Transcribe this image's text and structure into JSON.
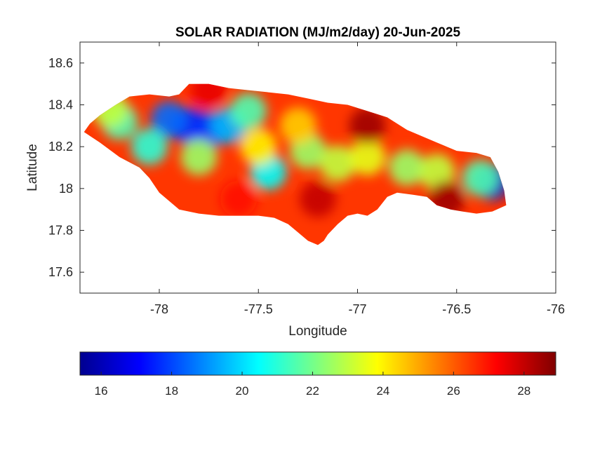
{
  "figure": {
    "title": "SOLAR RADIATION (MJ/m2/day) 20-Jun-2025",
    "xlabel": "Longitude",
    "ylabel": "Latitude"
  },
  "axes": {
    "xlim": [
      -78.4,
      -76
    ],
    "ylim": [
      17.5,
      18.7
    ],
    "xticks": [
      -78,
      -77.5,
      -77,
      -76.5,
      -76
    ],
    "xtick_labels": [
      "-78",
      "-77.5",
      "-77",
      "-76.5",
      "-76"
    ],
    "yticks": [
      17.6,
      17.8,
      18,
      18.2,
      18.4,
      18.6
    ],
    "ytick_labels": [
      "17.6",
      "17.8",
      "18",
      "18.2",
      "18.4",
      "18.6"
    ]
  },
  "colorbar": {
    "colormap": "jet",
    "range": [
      15.4,
      28.9
    ],
    "ticks": [
      16,
      18,
      20,
      22,
      24,
      26,
      28
    ],
    "tick_labels": [
      "16",
      "18",
      "20",
      "22",
      "24",
      "26",
      "28"
    ],
    "colors": [
      "#00008f",
      "#0000ff",
      "#00ffff",
      "#ffff00",
      "#ff0000",
      "#800000"
    ]
  },
  "chart_data": {
    "type": "heatmap",
    "title": "SOLAR RADIATION (MJ/m2/day) 20-Jun-2025",
    "xlabel": "Longitude",
    "ylabel": "Latitude",
    "xlim": [
      -78.4,
      -76
    ],
    "ylim": [
      17.5,
      18.7
    ],
    "color_range": [
      15.4,
      28.9
    ],
    "colormap": "jet",
    "grid": false,
    "land_outline": [
      [
        -78.38,
        18.27
      ],
      [
        -78.35,
        18.31
      ],
      [
        -78.3,
        18.35
      ],
      [
        -78.22,
        18.4
      ],
      [
        -78.15,
        18.44
      ],
      [
        -78.05,
        18.45
      ],
      [
        -77.95,
        18.44
      ],
      [
        -77.9,
        18.45
      ],
      [
        -77.85,
        18.5
      ],
      [
        -77.75,
        18.5
      ],
      [
        -77.65,
        18.48
      ],
      [
        -77.55,
        18.47
      ],
      [
        -77.45,
        18.46
      ],
      [
        -77.35,
        18.45
      ],
      [
        -77.25,
        18.43
      ],
      [
        -77.15,
        18.41
      ],
      [
        -77.05,
        18.4
      ],
      [
        -76.95,
        18.37
      ],
      [
        -76.85,
        18.34
      ],
      [
        -76.75,
        18.28
      ],
      [
        -76.6,
        18.22
      ],
      [
        -76.5,
        18.18
      ],
      [
        -76.4,
        18.17
      ],
      [
        -76.33,
        18.15
      ],
      [
        -76.29,
        18.08
      ],
      [
        -76.26,
        17.99
      ],
      [
        -76.25,
        17.92
      ],
      [
        -76.32,
        17.89
      ],
      [
        -76.4,
        17.88
      ],
      [
        -76.47,
        17.89
      ],
      [
        -76.53,
        17.9
      ],
      [
        -76.6,
        17.92
      ],
      [
        -76.65,
        17.96
      ],
      [
        -76.72,
        17.97
      ],
      [
        -76.8,
        17.98
      ],
      [
        -76.85,
        17.96
      ],
      [
        -76.9,
        17.9
      ],
      [
        -76.95,
        17.87
      ],
      [
        -77.0,
        17.88
      ],
      [
        -77.05,
        17.87
      ],
      [
        -77.1,
        17.83
      ],
      [
        -77.15,
        17.78
      ],
      [
        -77.17,
        17.75
      ],
      [
        -77.2,
        17.73
      ],
      [
        -77.25,
        17.75
      ],
      [
        -77.3,
        17.79
      ],
      [
        -77.35,
        17.83
      ],
      [
        -77.42,
        17.86
      ],
      [
        -77.5,
        17.87
      ],
      [
        -77.6,
        17.87
      ],
      [
        -77.7,
        17.87
      ],
      [
        -77.8,
        17.88
      ],
      [
        -77.9,
        17.9
      ],
      [
        -78.0,
        17.98
      ],
      [
        -78.05,
        18.05
      ],
      [
        -78.1,
        18.1
      ],
      [
        -78.2,
        18.15
      ],
      [
        -78.3,
        18.22
      ],
      [
        -78.38,
        18.27
      ]
    ],
    "hotspots": [
      {
        "lon": -77.85,
        "lat": 18.3,
        "value": 17.5
      },
      {
        "lon": -77.75,
        "lat": 18.28,
        "value": 17.8
      },
      {
        "lon": -77.95,
        "lat": 18.33,
        "value": 18.5
      },
      {
        "lon": -77.65,
        "lat": 18.3,
        "value": 19.5
      },
      {
        "lon": -77.55,
        "lat": 18.37,
        "value": 21.5
      },
      {
        "lon": -78.2,
        "lat": 18.32,
        "value": 21.5
      },
      {
        "lon": -78.05,
        "lat": 18.2,
        "value": 21.0
      },
      {
        "lon": -77.8,
        "lat": 18.15,
        "value": 22.5
      },
      {
        "lon": -77.45,
        "lat": 18.08,
        "value": 20.5
      },
      {
        "lon": -77.5,
        "lat": 18.2,
        "value": 24.0
      },
      {
        "lon": -77.25,
        "lat": 18.18,
        "value": 22.5
      },
      {
        "lon": -77.1,
        "lat": 18.12,
        "value": 23.0
      },
      {
        "lon": -76.95,
        "lat": 18.15,
        "value": 23.5
      },
      {
        "lon": -76.75,
        "lat": 18.1,
        "value": 22.5
      },
      {
        "lon": -76.6,
        "lat": 18.08,
        "value": 23.0
      },
      {
        "lon": -76.32,
        "lat": 18.03,
        "value": 16.5
      },
      {
        "lon": -76.38,
        "lat": 18.05,
        "value": 21.5
      },
      {
        "lon": -77.3,
        "lat": 18.3,
        "value": 24.5
      },
      {
        "lon": -77.2,
        "lat": 17.95,
        "value": 28.0
      },
      {
        "lon": -77.6,
        "lat": 17.95,
        "value": 27.0
      },
      {
        "lon": -76.95,
        "lat": 18.3,
        "value": 28.5
      },
      {
        "lon": -76.55,
        "lat": 17.95,
        "value": 28.5
      },
      {
        "lon": -77.75,
        "lat": 18.47,
        "value": 27.5
      },
      {
        "lon": -78.25,
        "lat": 18.38,
        "value": 23.0
      }
    ],
    "background_value": 26.5
  }
}
